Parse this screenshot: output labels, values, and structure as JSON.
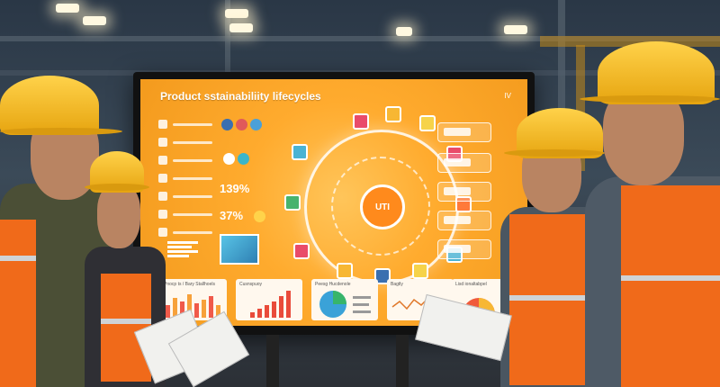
{
  "screen": {
    "title": "Product sstainabiliity lifecycles",
    "corner_label": "IV",
    "hub_label": "UTI",
    "stats": [
      "139%",
      "37%"
    ],
    "panels": [
      {
        "label": "Pnocp ts / Bary Stallhoels"
      },
      {
        "label": "Cusnspuoy"
      },
      {
        "label": "Peesg Hucdenole"
      },
      {
        "label": "Bagtly"
      },
      {
        "label": "Lisd ionaltabpel"
      }
    ]
  },
  "colors": {
    "screen_orange": "#f39a1d",
    "helmet_yellow": "#ffd24a",
    "vest_orange": "#f06a1a"
  }
}
